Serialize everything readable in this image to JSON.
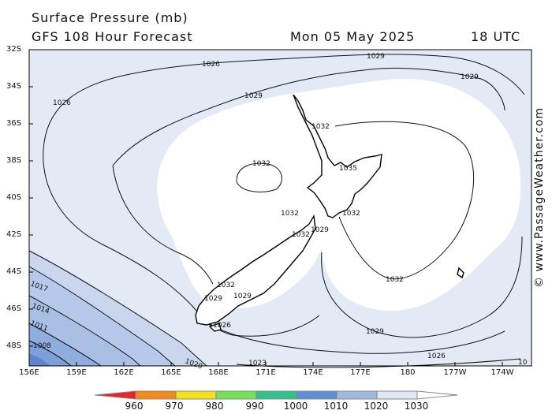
{
  "title": {
    "line1": "Surface Pressure (mb)",
    "line2": "GFS 108 Hour Forecast",
    "date": "Mon 05 May 2025",
    "time": "18 UTC"
  },
  "copyright": "© www.PassageWeather.com",
  "axes": {
    "lat_ticks": [
      "32S",
      "34S",
      "36S",
      "38S",
      "40S",
      "42S",
      "44S",
      "46S",
      "48S"
    ],
    "lon_ticks": [
      "156E",
      "159E",
      "162E",
      "165E",
      "168E",
      "171E",
      "174E",
      "177E",
      "180",
      "177W",
      "174W"
    ]
  },
  "isobar_labels": [
    {
      "id": "l1026a",
      "text": "1026"
    },
    {
      "id": "l1029a",
      "text": "1029"
    },
    {
      "id": "l1029b",
      "text": "1029"
    },
    {
      "id": "l1026b",
      "text": "1026"
    },
    {
      "id": "l1029c",
      "text": "1029"
    },
    {
      "id": "l1032a",
      "text": "1032"
    },
    {
      "id": "l1032b",
      "text": "1032"
    },
    {
      "id": "l1035",
      "text": "1035"
    },
    {
      "id": "l1032c",
      "text": "1032"
    },
    {
      "id": "l1032d",
      "text": "1032"
    },
    {
      "id": "l1032e",
      "text": "1032"
    },
    {
      "id": "l1029d",
      "text": "1029"
    },
    {
      "id": "l1032f",
      "text": "1032"
    },
    {
      "id": "l1032g",
      "text": "1032"
    },
    {
      "id": "l1029e",
      "text": "1029"
    },
    {
      "id": "l1029f",
      "text": "1029"
    },
    {
      "id": "l1026c",
      "text": "1026"
    },
    {
      "id": "l1029g",
      "text": "1029"
    },
    {
      "id": "l1026d",
      "text": "1026"
    },
    {
      "id": "l1020",
      "text": "1020"
    },
    {
      "id": "l1023",
      "text": "1023"
    },
    {
      "id": "l1017",
      "text": "1017"
    },
    {
      "id": "l1014",
      "text": "1014"
    },
    {
      "id": "l1011",
      "text": "1011"
    },
    {
      "id": "l1008",
      "text": "1008"
    },
    {
      "id": "l10r",
      "text": "10"
    }
  ],
  "colorbar": {
    "labels": [
      "960",
      "970",
      "980",
      "990",
      "1000",
      "1010",
      "1020",
      "1030"
    ],
    "colors": [
      "#e8262a",
      "#f08a1a",
      "#f5e01e",
      "#76e05a",
      "#33c08a",
      "#5b8fd0",
      "#9fb9e0",
      "#dfe8f5"
    ]
  },
  "colors": {
    "fill_1032": "#ffffff",
    "fill_1029": "#e3eaf6",
    "fill_1020": "#c9d6ee",
    "fill_1014": "#a9bfe4",
    "fill_1008": "#7f9fd8",
    "fill_1005": "#5f86cc"
  }
}
